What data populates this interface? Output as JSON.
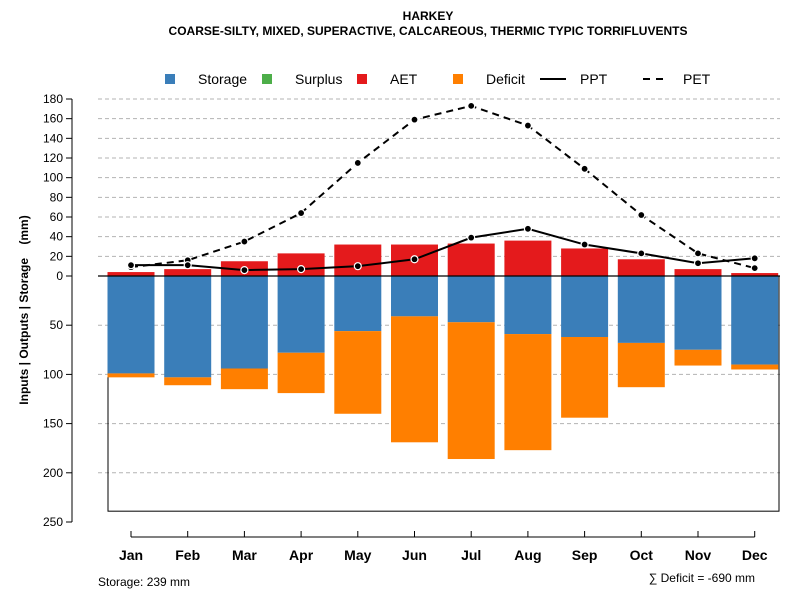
{
  "chart_data": {
    "type": "bar",
    "title": "HARKEY",
    "subtitle": "COARSE-SILTY, MIXED, SUPERACTIVE, CALCAREOUS, THERMIC TYPIC TORRIFLUVENTS",
    "ylabel": "Inputs | Outputs | Storage    (mm)",
    "categories": [
      "Jan",
      "Feb",
      "Mar",
      "Apr",
      "May",
      "Jun",
      "Jul",
      "Aug",
      "Sep",
      "Oct",
      "Nov",
      "Dec"
    ],
    "y_ticks_top": [
      "180",
      "160",
      "140",
      "120",
      "100",
      "80",
      "60",
      "40",
      "20",
      "0"
    ],
    "y_ticks_bottom": [
      "50",
      "100",
      "150",
      "200",
      "250"
    ],
    "ylim_top": [
      0,
      180
    ],
    "ylim_bottom": [
      0,
      250
    ],
    "legend": [
      {
        "label": "Storage",
        "kind": "box",
        "color": "#3A7EB9"
      },
      {
        "label": "Surplus",
        "kind": "box",
        "color": "#4DAE49"
      },
      {
        "label": "AET",
        "kind": "box",
        "color": "#E41A1C"
      },
      {
        "label": "Deficit",
        "kind": "box",
        "color": "#FF7F00"
      },
      {
        "label": "PPT",
        "kind": "solid",
        "color": "#000000"
      },
      {
        "label": "PET",
        "kind": "dashed",
        "color": "#000000"
      }
    ],
    "series": [
      {
        "name": "AET",
        "color": "#E41A1C",
        "values": [
          4,
          7,
          15,
          23,
          32,
          32,
          33,
          36,
          28,
          17,
          7,
          3
        ]
      },
      {
        "name": "Storage",
        "color": "#3A7EB9",
        "values": [
          99,
          103,
          94,
          78,
          56,
          41,
          47,
          59,
          62,
          68,
          75,
          90
        ]
      },
      {
        "name": "Deficit",
        "color": "#FF7F00",
        "values": [
          4,
          8,
          21,
          41,
          84,
          128,
          139,
          118,
          82,
          45,
          16,
          5
        ]
      },
      {
        "name": "Surplus",
        "color": "#4DAE49",
        "values": [
          0,
          0,
          0,
          0,
          0,
          0,
          0,
          0,
          0,
          0,
          0,
          0
        ]
      },
      {
        "name": "PPT",
        "color": "#000000",
        "values": [
          11,
          11,
          6,
          7,
          10,
          17,
          39,
          48,
          32,
          23,
          13,
          18
        ]
      },
      {
        "name": "PET",
        "color": "#000000",
        "values": [
          9,
          16,
          35,
          64,
          115,
          159,
          173,
          153,
          109,
          62,
          23,
          8
        ]
      }
    ],
    "storage_capacity": 239,
    "footer_left": "Storage: 239 mm",
    "footer_right": "∑ Deficit = -690 mm"
  }
}
